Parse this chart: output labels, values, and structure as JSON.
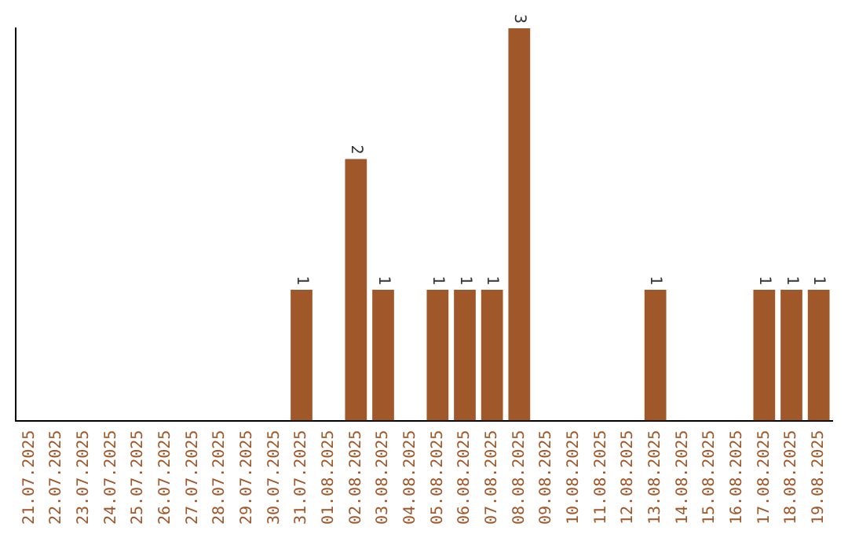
{
  "chart_data": {
    "type": "bar",
    "categories": [
      "21.07.2025",
      "22.07.2025",
      "23.07.2025",
      "24.07.2025",
      "25.07.2025",
      "26.07.2025",
      "27.07.2025",
      "28.07.2025",
      "29.07.2025",
      "30.07.2025",
      "31.07.2025",
      "01.08.2025",
      "02.08.2025",
      "03.08.2025",
      "04.08.2025",
      "05.08.2025",
      "06.08.2025",
      "07.08.2025",
      "08.08.2025",
      "09.08.2025",
      "10.08.2025",
      "11.08.2025",
      "12.08.2025",
      "13.08.2025",
      "14.08.2025",
      "15.08.2025",
      "16.08.2025",
      "17.08.2025",
      "18.08.2025",
      "19.08.2025"
    ],
    "values": [
      0,
      0,
      0,
      0,
      0,
      0,
      0,
      0,
      0,
      0,
      1,
      0,
      2,
      1,
      0,
      1,
      1,
      1,
      3,
      0,
      0,
      0,
      0,
      1,
      0,
      0,
      0,
      1,
      1,
      1
    ],
    "value_labels": [
      null,
      null,
      null,
      null,
      null,
      null,
      null,
      null,
      null,
      null,
      "1",
      null,
      "2",
      "1",
      null,
      "1",
      "1",
      "1",
      "3",
      null,
      null,
      null,
      null,
      "1",
      null,
      null,
      null,
      "1",
      "1",
      "1"
    ],
    "color": "#a0572a",
    "tick_labels": "x",
    "grid": false,
    "legend": false
  }
}
